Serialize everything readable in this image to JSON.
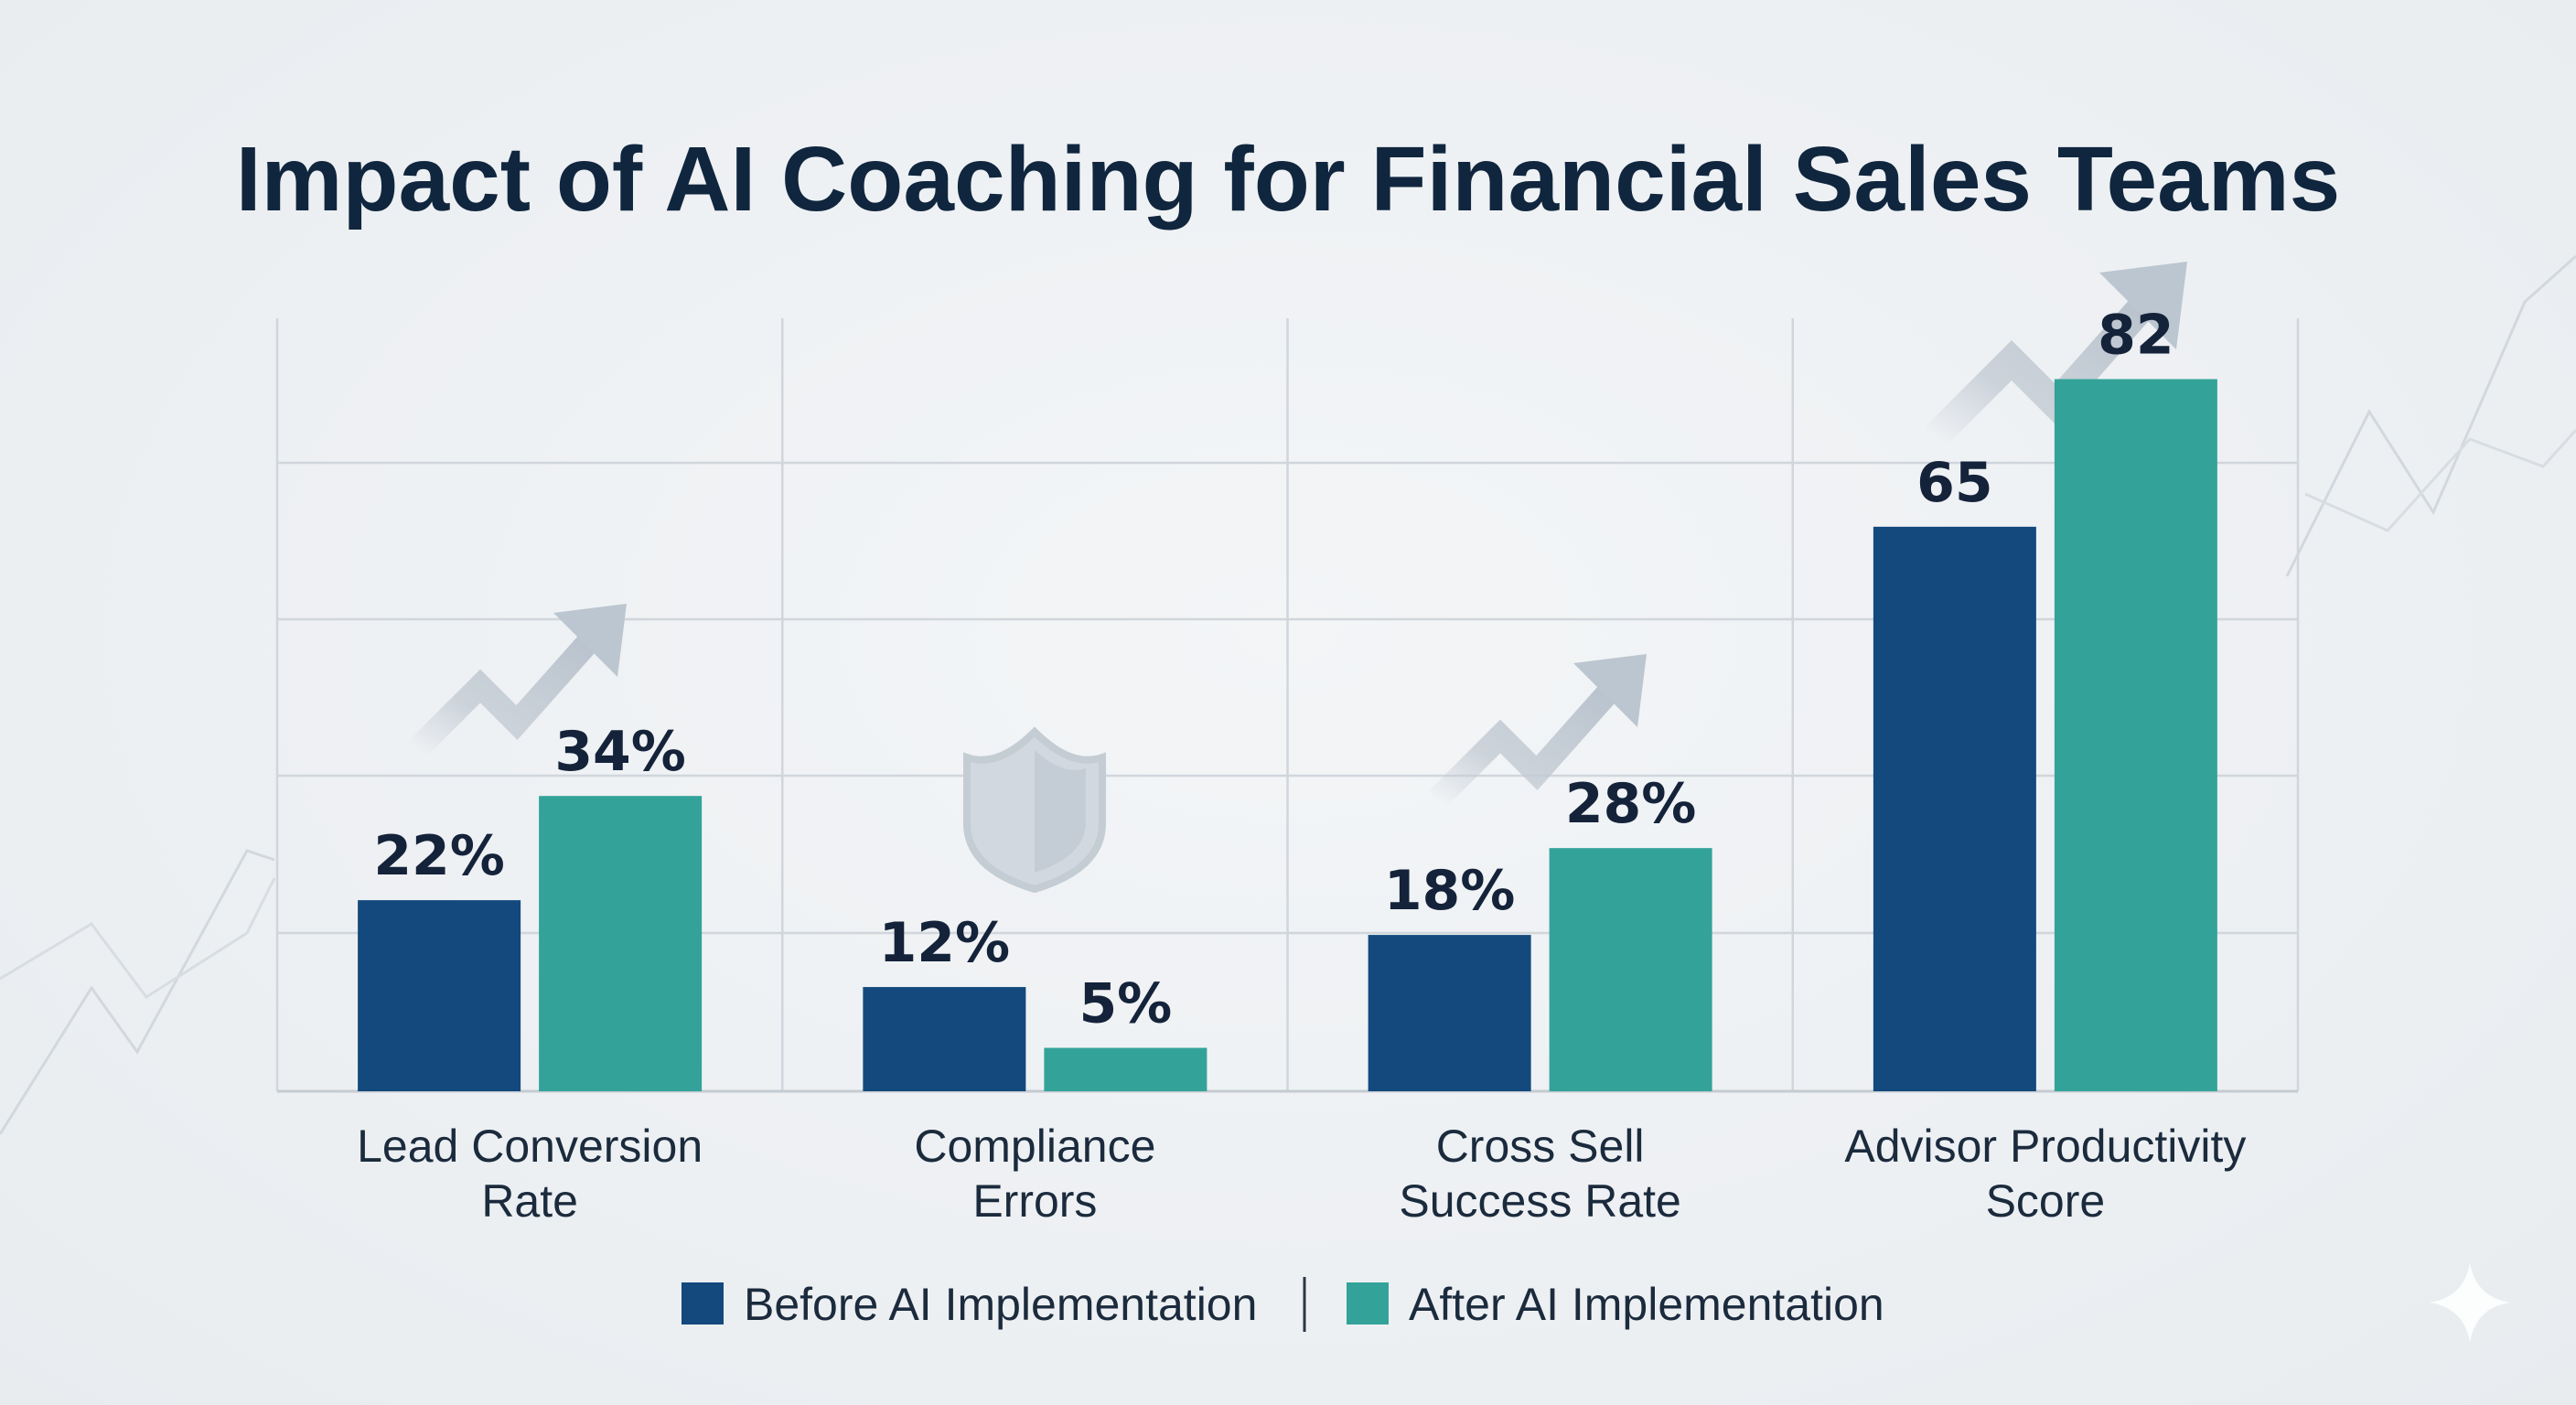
{
  "chart_data": {
    "type": "bar",
    "title": "Impact of AI Coaching for Financial Sales Teams",
    "categories": [
      [
        "Lead Conversion",
        "Rate"
      ],
      [
        "Compliance",
        "Errors"
      ],
      [
        "Cross Sell",
        "Success Rate"
      ],
      [
        "Advisor Productivity",
        "Score"
      ]
    ],
    "series": [
      {
        "name": "Before AI Implementation",
        "color": "#13497d",
        "values": [
          22,
          12,
          18,
          65
        ],
        "labels": [
          "22%",
          "12%",
          "18%",
          "65"
        ]
      },
      {
        "name": "After AI Implementation",
        "color": "#33a399",
        "values": [
          34,
          5,
          28,
          82
        ],
        "labels": [
          "34%",
          "5%",
          "28%",
          "82"
        ]
      }
    ],
    "ylim": [
      0,
      100
    ],
    "grid": true,
    "legend": "bottom-center",
    "decorations": [
      "trend-arrow-icon",
      "shield-icon",
      "trend-arrow-icon",
      "trend-arrow-icon",
      "background-line-chart",
      "sparkle-icon"
    ]
  }
}
